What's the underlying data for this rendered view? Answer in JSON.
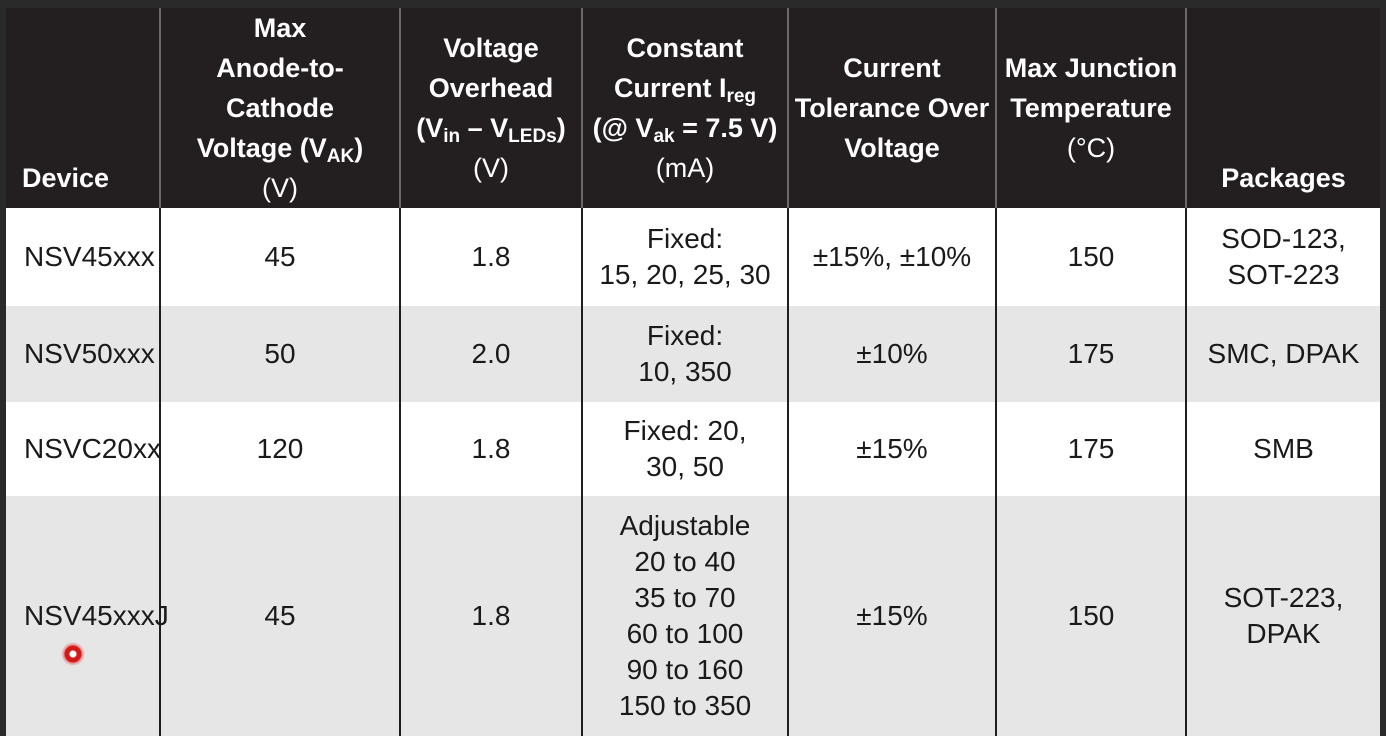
{
  "header": {
    "device": "Device",
    "vak": {
      "l1": "Max",
      "l2": "Anode-to-Cathode",
      "l3_pre": "Voltage (V",
      "l3_sub": "AK",
      "l3_post": ")",
      "unit": "(V)"
    },
    "overhead": {
      "l1": "Voltage",
      "l2": "Overhead",
      "l3_a": "(V",
      "l3_a_sub": "in",
      "l3_mid": " – V",
      "l3_b_sub": "LEDs",
      "l3_post": ")",
      "unit": "(V)"
    },
    "ireg": {
      "l1": "Constant",
      "l2_pre": "Current I",
      "l2_sub": "reg",
      "l3_pre": "(@ V",
      "l3_sub": "ak",
      "l3_post": " = 7.5 V)",
      "unit": "(mA)"
    },
    "tolerance": {
      "l1": "Current",
      "l2": "Tolerance Over",
      "l3": "Voltage"
    },
    "tj": {
      "l1": "Max Junction",
      "l2": "Temperature",
      "unit": "(°C)"
    },
    "packages": "Packages"
  },
  "rows": [
    {
      "device": "NSV45xxx",
      "vak": "45",
      "overhead": "1.8",
      "ireg": [
        "Fixed:",
        "15, 20, 25, 30"
      ],
      "tolerance": "±15%, ±10%",
      "tj": "150",
      "packages": [
        "SOD-123,",
        "SOT-223"
      ]
    },
    {
      "device": "NSV50xxx",
      "vak": "50",
      "overhead": "2.0",
      "ireg": [
        "Fixed:",
        "10, 350"
      ],
      "tolerance": "±10%",
      "tj": "175",
      "packages": [
        "SMC, DPAK"
      ]
    },
    {
      "device": "NSVC20xx",
      "vak": "120",
      "overhead": "1.8",
      "ireg": [
        "Fixed: 20,",
        "30, 50"
      ],
      "tolerance": "±15%",
      "tj": "175",
      "packages": [
        "SMB"
      ]
    },
    {
      "device": "NSV45xxxJ",
      "vak": "45",
      "overhead": "1.8",
      "ireg": [
        "Adjustable",
        "20 to 40",
        "35 to 70",
        "60 to 100",
        "90 to 160",
        "150 to 350"
      ],
      "tolerance": "±15%",
      "tj": "150",
      "packages": [
        "SOT-223,",
        "DPAK"
      ]
    }
  ]
}
